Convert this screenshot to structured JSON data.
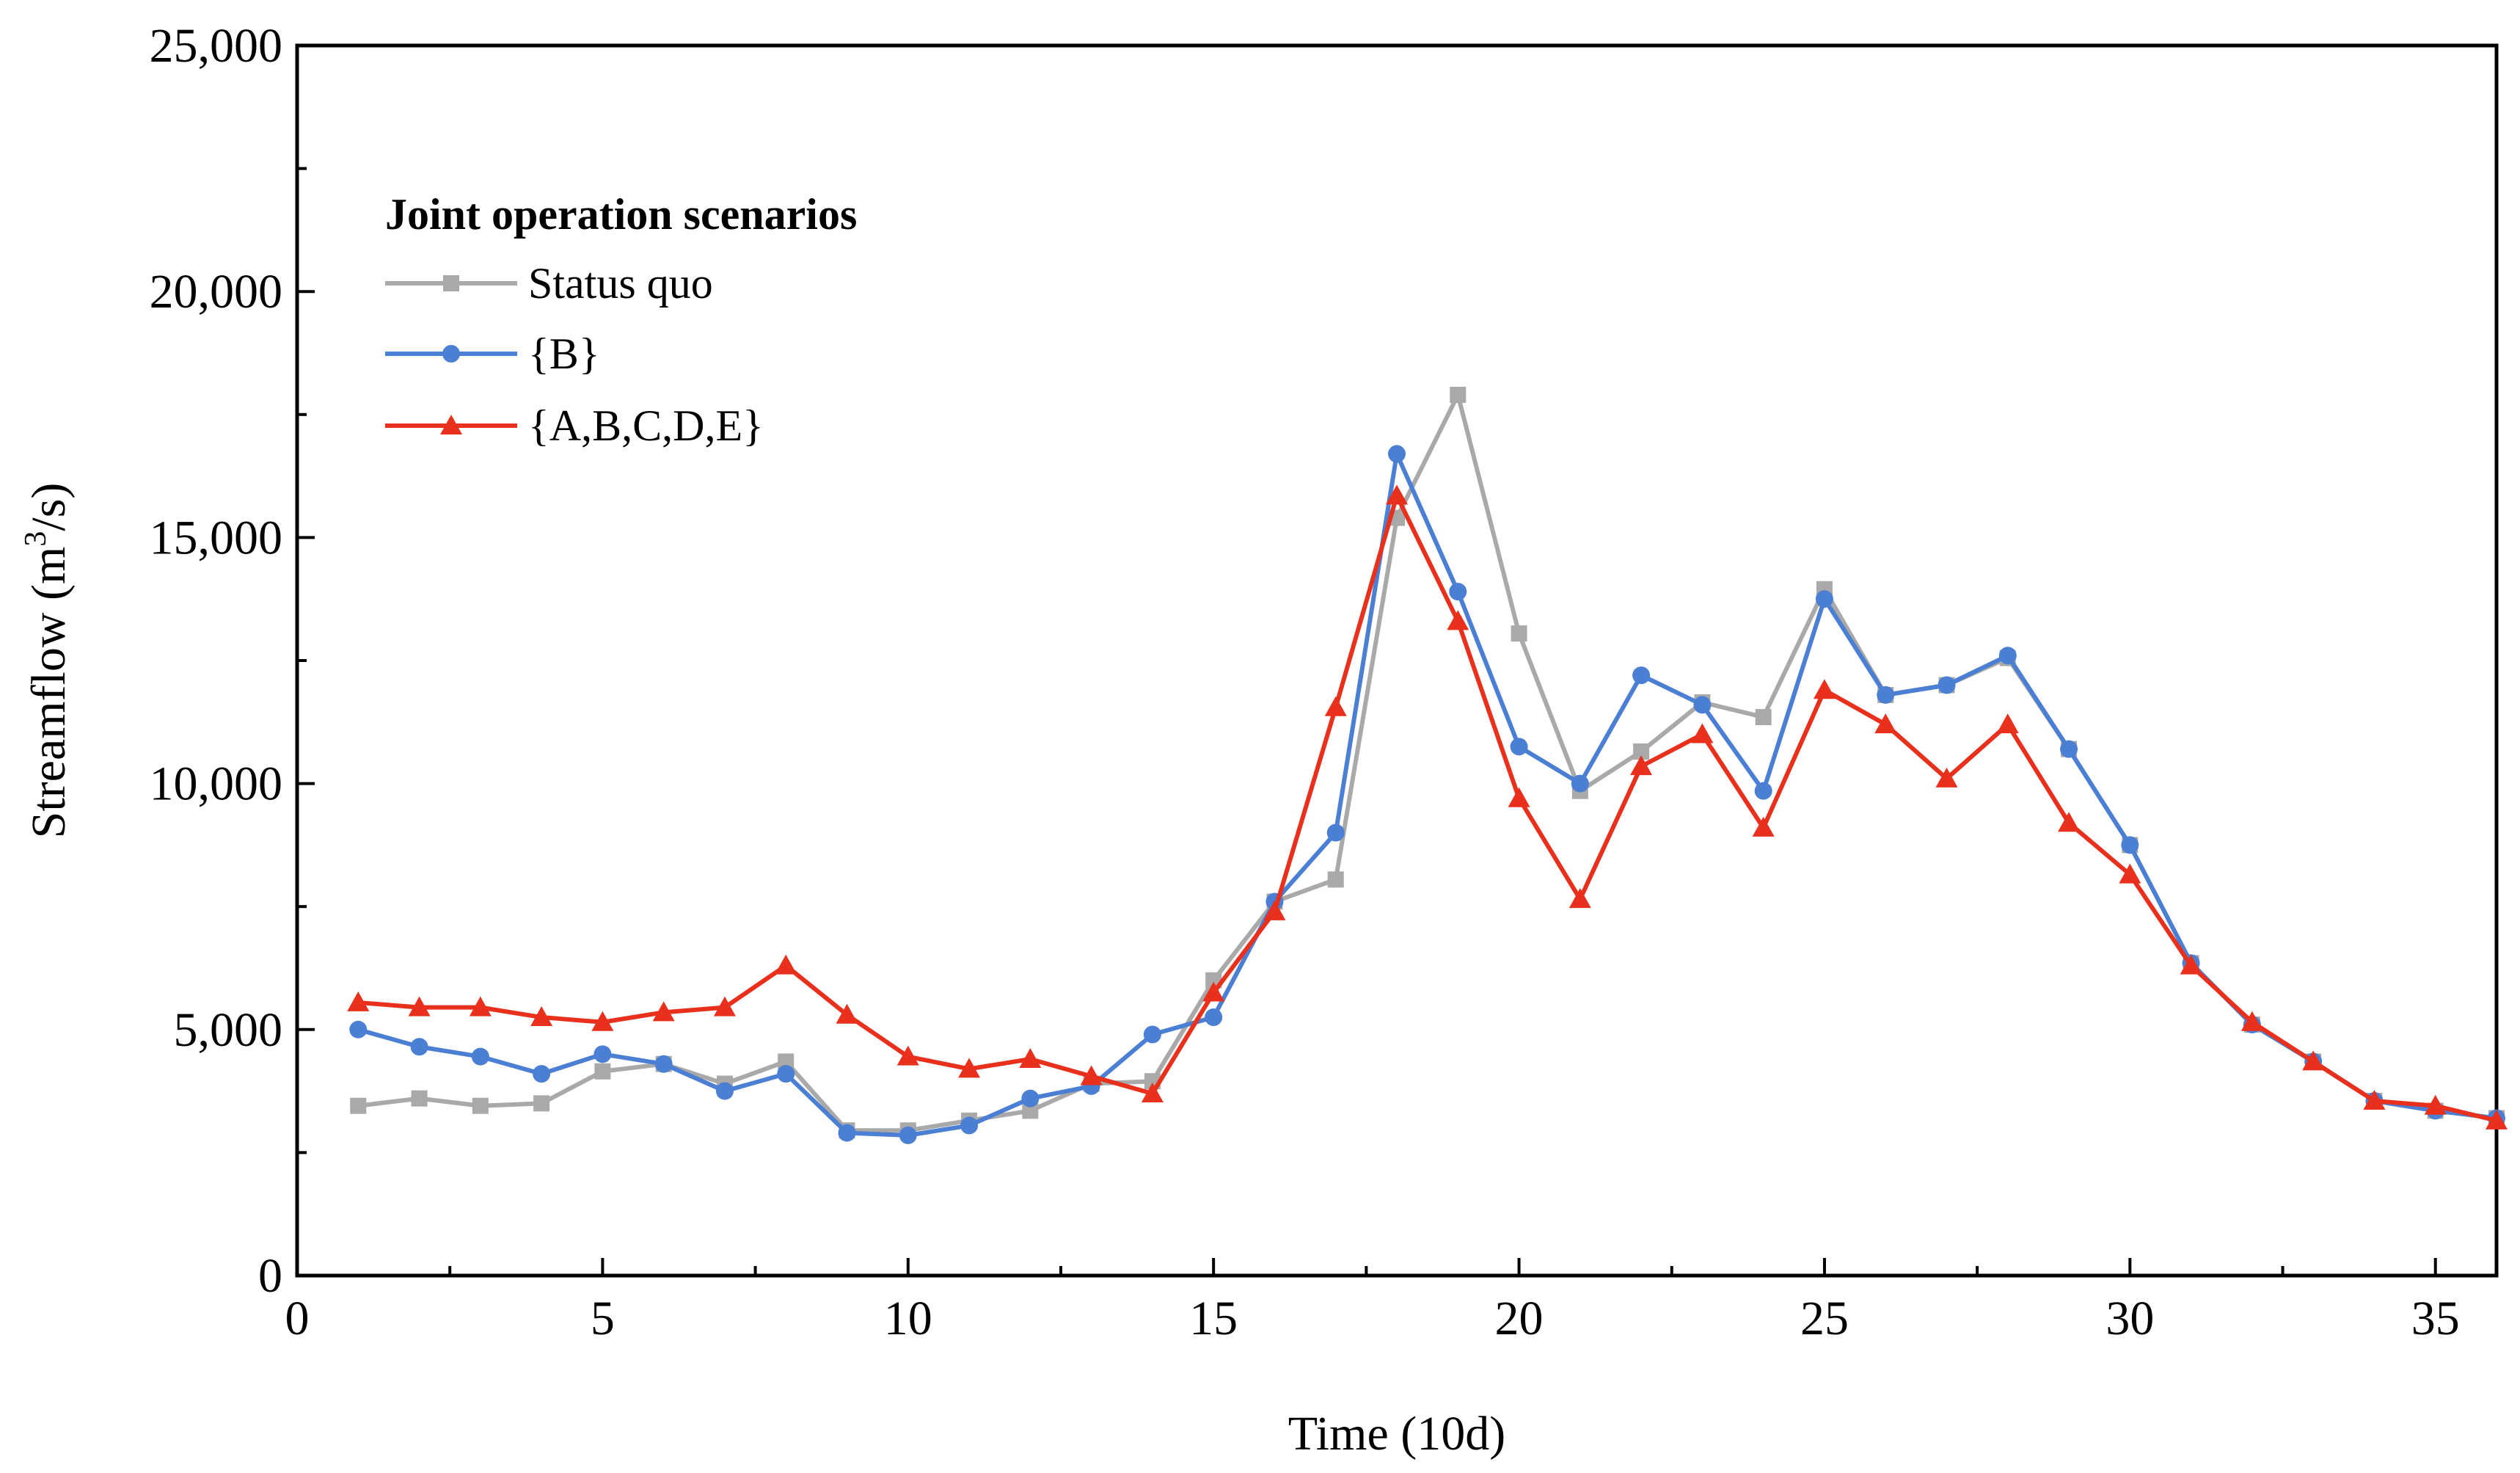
{
  "chart_data": {
    "type": "line",
    "title": "",
    "xlabel": "Time (10d)",
    "ylabel_main": "Streamflow (m",
    "ylabel_sup": "3",
    "ylabel_tail": "/s)",
    "xlim": [
      0,
      36
    ],
    "ylim": [
      0,
      25000
    ],
    "x_ticks": [
      0,
      5,
      10,
      15,
      20,
      25,
      30,
      35
    ],
    "x_tick_labels": [
      "0",
      "5",
      "10",
      "15",
      "20",
      "25",
      "30",
      "35"
    ],
    "y_ticks": [
      0,
      5000,
      10000,
      15000,
      20000,
      25000
    ],
    "y_tick_labels": [
      "0",
      "5,000",
      "10,000",
      "15,000",
      "20,000",
      "25,000"
    ],
    "grid": false,
    "legend": {
      "title": "Joint operation scenarios",
      "placement": "top-left"
    },
    "x": [
      1,
      2,
      3,
      4,
      5,
      6,
      7,
      8,
      9,
      10,
      11,
      12,
      13,
      14,
      15,
      16,
      17,
      18,
      19,
      20,
      21,
      22,
      23,
      24,
      25,
      26,
      27,
      28,
      29,
      30,
      31,
      32,
      33,
      34,
      35,
      36
    ],
    "series": [
      {
        "name": "Status quo",
        "color": "#A9A9A9",
        "marker": "square",
        "values": [
          3450,
          3600,
          3450,
          3500,
          4150,
          4300,
          3900,
          4350,
          2950,
          2950,
          3150,
          3350,
          3900,
          3950,
          6000,
          7600,
          8050,
          15400,
          17900,
          13050,
          9850,
          10650,
          11650,
          11350,
          13950,
          11800,
          12000,
          12550,
          10700,
          8750,
          6350,
          5100,
          4350,
          3550,
          3350,
          3200
        ]
      },
      {
        "name": "{B}",
        "color": "#4A7FD4",
        "marker": "circle",
        "values": [
          5000,
          4650,
          4450,
          4100,
          4500,
          4300,
          3750,
          4100,
          2900,
          2850,
          3050,
          3600,
          3850,
          4900,
          5250,
          7600,
          9000,
          16700,
          13900,
          10750,
          10000,
          12200,
          11600,
          9850,
          13750,
          11800,
          12000,
          12600,
          10700,
          8750,
          6350,
          5100,
          4350,
          3550,
          3350,
          3200
        ]
      },
      {
        "name": "{A,B,C,D,E}",
        "color": "#E8301C",
        "marker": "triangle",
        "values": [
          5550,
          5450,
          5450,
          5250,
          5150,
          5350,
          5450,
          6300,
          5300,
          4450,
          4200,
          4400,
          4050,
          3700,
          5750,
          7400,
          11550,
          15850,
          13300,
          9700,
          7650,
          10350,
          11000,
          9100,
          11900,
          11200,
          10100,
          11200,
          9200,
          8150,
          6300,
          5150,
          4350,
          3550,
          3450,
          3150
        ]
      }
    ]
  }
}
